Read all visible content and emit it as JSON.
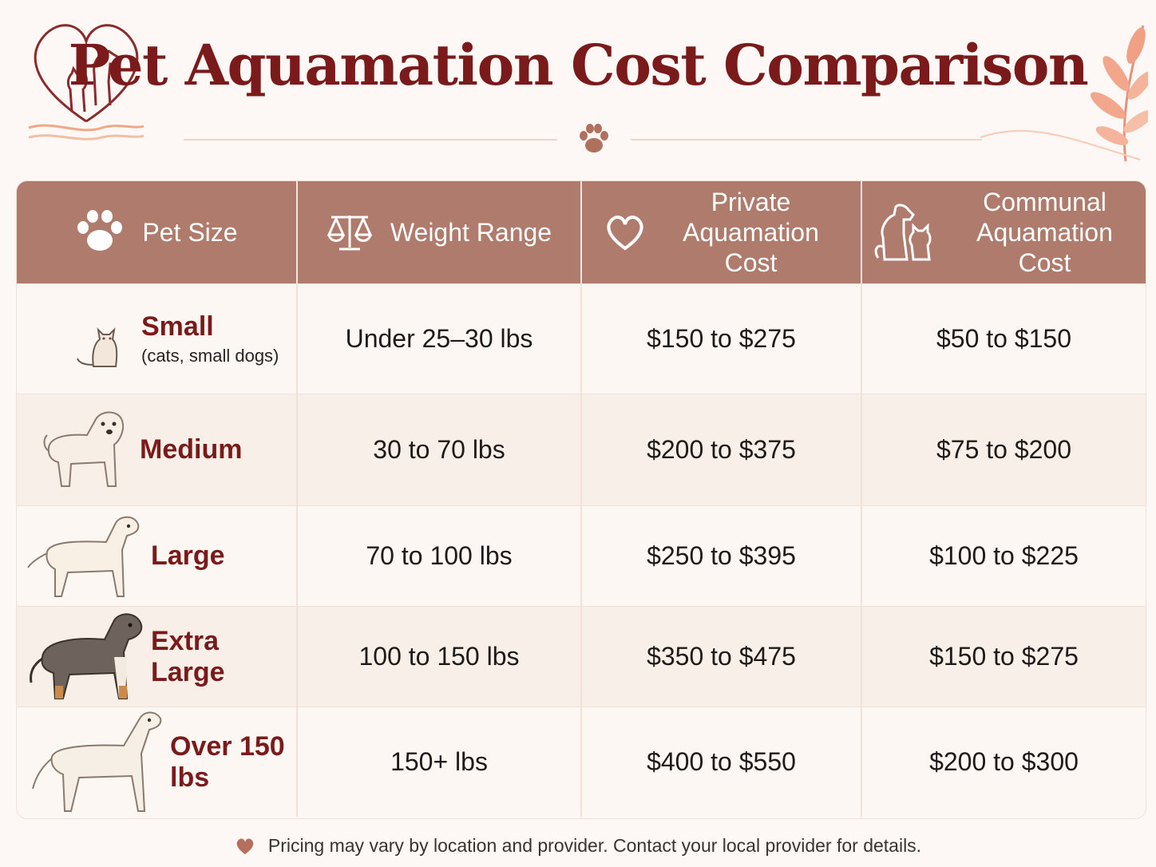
{
  "title": "Pet Aquamation Cost Comparison",
  "colors": {
    "accent": "#7a1a1a",
    "header_bg": "#ae7b6c",
    "page_bg": "#fdf8f5"
  },
  "headers": {
    "pet_size": "Pet Size",
    "weight_range": "Weight Range",
    "private_cost": "Private Aquamation Cost",
    "communal_cost": "Communal Aquamation Cost"
  },
  "rows": [
    {
      "size": "Small",
      "sub": "(cats, small dogs)",
      "weight": "Under 25–30 lbs",
      "private": "$150 to $275",
      "communal": "$50 to $150",
      "icon": "cat-icon"
    },
    {
      "size": "Medium",
      "sub": "",
      "weight": "30 to 70 lbs",
      "private": "$200 to $375",
      "communal": "$75 to $200",
      "icon": "terrier-dog-icon"
    },
    {
      "size": "Large",
      "sub": "",
      "weight": "70 to 100 lbs",
      "private": "$250 to $395",
      "communal": "$100 to $225",
      "icon": "labrador-dog-icon"
    },
    {
      "size": "Extra Large",
      "sub": "",
      "weight": "100 to 150 lbs",
      "private": "$350 to $475",
      "communal": "$150 to $275",
      "icon": "bernese-dog-icon"
    },
    {
      "size": "Over 150 lbs",
      "sub": "",
      "weight": "150+ lbs",
      "private": "$400 to $550",
      "communal": "$200 to $300",
      "icon": "great-dane-dog-icon"
    }
  ],
  "footer": "Pricing may vary by location and provider. Contact your local provider for details."
}
